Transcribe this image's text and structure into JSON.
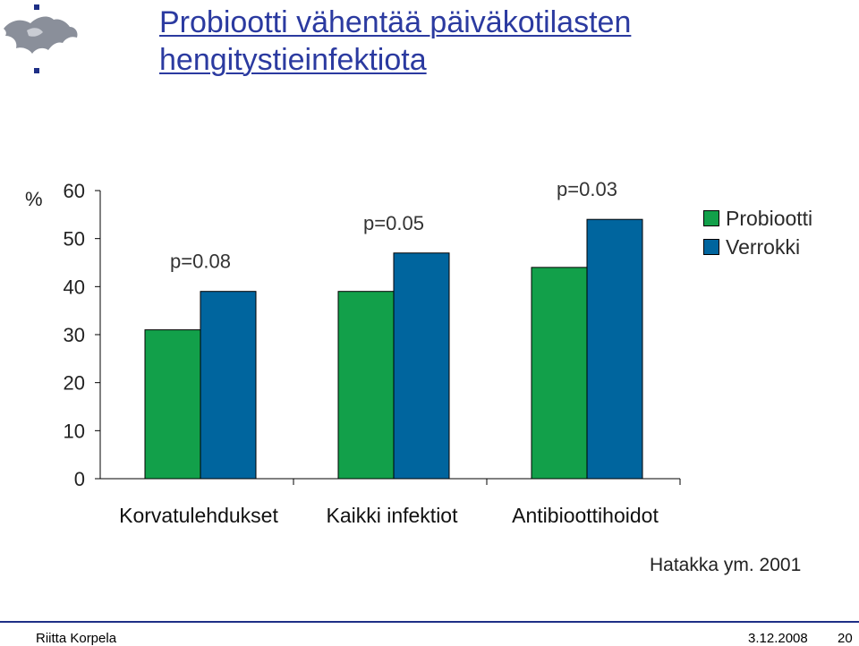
{
  "slide": {
    "title_line1": "Probiootti vähentää päiväkotilasten",
    "title_line2": "hengitystieinfektiota",
    "source": "Hatakka ym. 2001",
    "footer_author": "Riitta Korpela",
    "footer_date": "3.12.2008",
    "footer_page": "20"
  },
  "colors": {
    "title": "#2b3aa0",
    "probiootti": "#12a04a",
    "verrokki": "#00659e",
    "footer_line": "#1e2f86"
  },
  "logo": {
    "icon": "university-helsinki-logo-icon"
  },
  "chart_data": {
    "type": "bar",
    "ylabel": "%",
    "ylim": [
      0,
      60
    ],
    "yticks": [
      0,
      10,
      20,
      30,
      40,
      50,
      60
    ],
    "categories": [
      "Korvatulehdukset",
      "Kaikki infektiot",
      "Antibioottihoidot"
    ],
    "series": [
      {
        "name": "Probiootti",
        "color": "#12a04a",
        "values": [
          31,
          39,
          44
        ]
      },
      {
        "name": "Verrokki",
        "color": "#00659e",
        "values": [
          39,
          47,
          54
        ]
      }
    ],
    "annotations": [
      "p=0.08",
      "p=0.05",
      "p=0.03"
    ],
    "legend": "right",
    "grid": false
  }
}
